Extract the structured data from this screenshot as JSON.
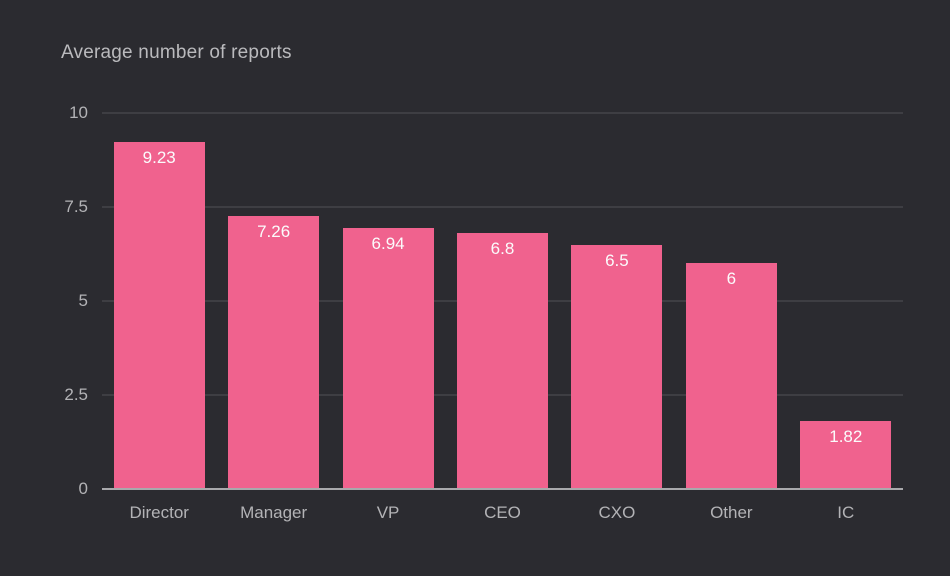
{
  "chart_data": {
    "type": "bar",
    "title": "Average number of reports",
    "categories": [
      "Director",
      "Manager",
      "VP",
      "CEO",
      "CXO",
      "Other",
      "IC"
    ],
    "values": [
      9.23,
      7.26,
      6.94,
      6.8,
      6.5,
      6,
      1.82
    ],
    "value_labels": [
      "9.23",
      "7.26",
      "6.94",
      "6.8",
      "6.5",
      "6",
      "1.82"
    ],
    "xlabel": "",
    "ylabel": "",
    "ylim": [
      0,
      10
    ],
    "yticks": [
      0,
      2.5,
      5,
      7.5,
      10
    ],
    "ytick_labels": [
      "0",
      "2.5",
      "5",
      "7.5",
      "10"
    ],
    "grid": true,
    "legend": false,
    "colors": {
      "background": "#2b2b30",
      "bar": "#f0628e",
      "title_text": "#bababd",
      "axis_text": "#b3b3b6",
      "gridline": "#3e3e43",
      "baseline": "#a9a9ac",
      "value_text": "#fbfbfc"
    }
  }
}
